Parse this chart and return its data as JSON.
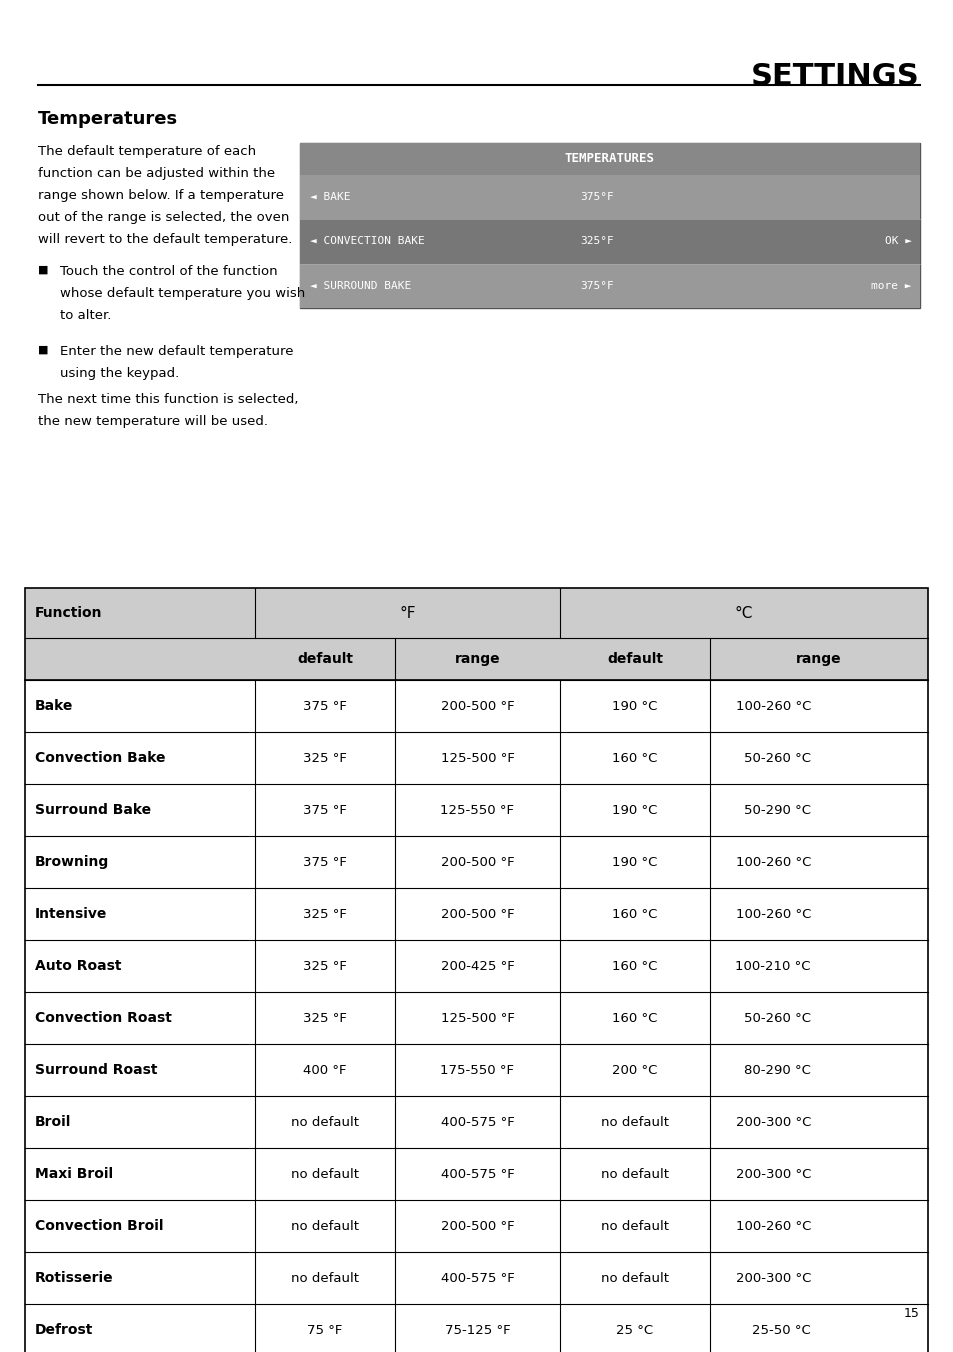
{
  "title": "SETTINGS",
  "section_title": "Temperatures",
  "body_text_1a": "The default temperature of each",
  "body_text_1b": "function can be adjusted within the",
  "body_text_1c": "range shown below. If a temperature",
  "body_text_1d": "out of the range is selected, the oven",
  "body_text_1e": "will revert to the default temperature.",
  "bullet_1a": "Touch the control of the function",
  "bullet_1b": "whose default temperature you wish",
  "bullet_1c": "to alter.",
  "bullet_2a": "Enter the new default temperature",
  "bullet_2b": "using the keypad.",
  "body_text_2a": "The next time this function is selected,",
  "body_text_2b": "the new temperature will be used.",
  "display_title": "TEMPERATURES",
  "display_rows": [
    [
      "◄ BAKE",
      "375°F",
      ""
    ],
    [
      "◄ CONVECTION BAKE",
      "325°F",
      "OK ►"
    ],
    [
      "◄ SURROUND BAKE",
      "375°F",
      "more ►"
    ]
  ],
  "display_bg": "#888888",
  "display_text_color": "#ffffff",
  "table_header_bg": "#cccccc",
  "table_rows": [
    [
      "Bake",
      "375 °F",
      "200-500 °F",
      "190 °C",
      "100-260 °C"
    ],
    [
      "Convection Bake",
      "325 °F",
      "125-500 °F",
      "160 °C",
      "50-260 °C"
    ],
    [
      "Surround Bake",
      "375 °F",
      "125-550 °F",
      "190 °C",
      "50-290 °C"
    ],
    [
      "Browning",
      "375 °F",
      "200-500 °F",
      "190 °C",
      "100-260 °C"
    ],
    [
      "Intensive",
      "325 °F",
      "200-500 °F",
      "160 °C",
      "100-260 °C"
    ],
    [
      "Auto Roast",
      "325 °F",
      "200-425 °F",
      "160 °C",
      "100-210 °C"
    ],
    [
      "Convection Roast",
      "325 °F",
      "125-500 °F",
      "160 °C",
      "50-260 °C"
    ],
    [
      "Surround Roast",
      "400 °F",
      "175-550 °F",
      "200 °C",
      "80-290 °C"
    ],
    [
      "Broil",
      "no default",
      "400-575 °F",
      "no default",
      "200-300 °C"
    ],
    [
      "Maxi Broil",
      "no default",
      "400-575 °F",
      "no default",
      "200-300 °C"
    ],
    [
      "Convection Broil",
      "no default",
      "200-500 °F",
      "no default",
      "100-260 °C"
    ],
    [
      "Rotisserie",
      "no default",
      "400-575 °F",
      "no default",
      "200-300 °C"
    ],
    [
      "Defrost",
      "75 °F",
      "75-125 °F",
      "25 °C",
      "25-50 °C"
    ]
  ],
  "page_number": "15",
  "bg_color": "#ffffff",
  "text_color": "#000000"
}
